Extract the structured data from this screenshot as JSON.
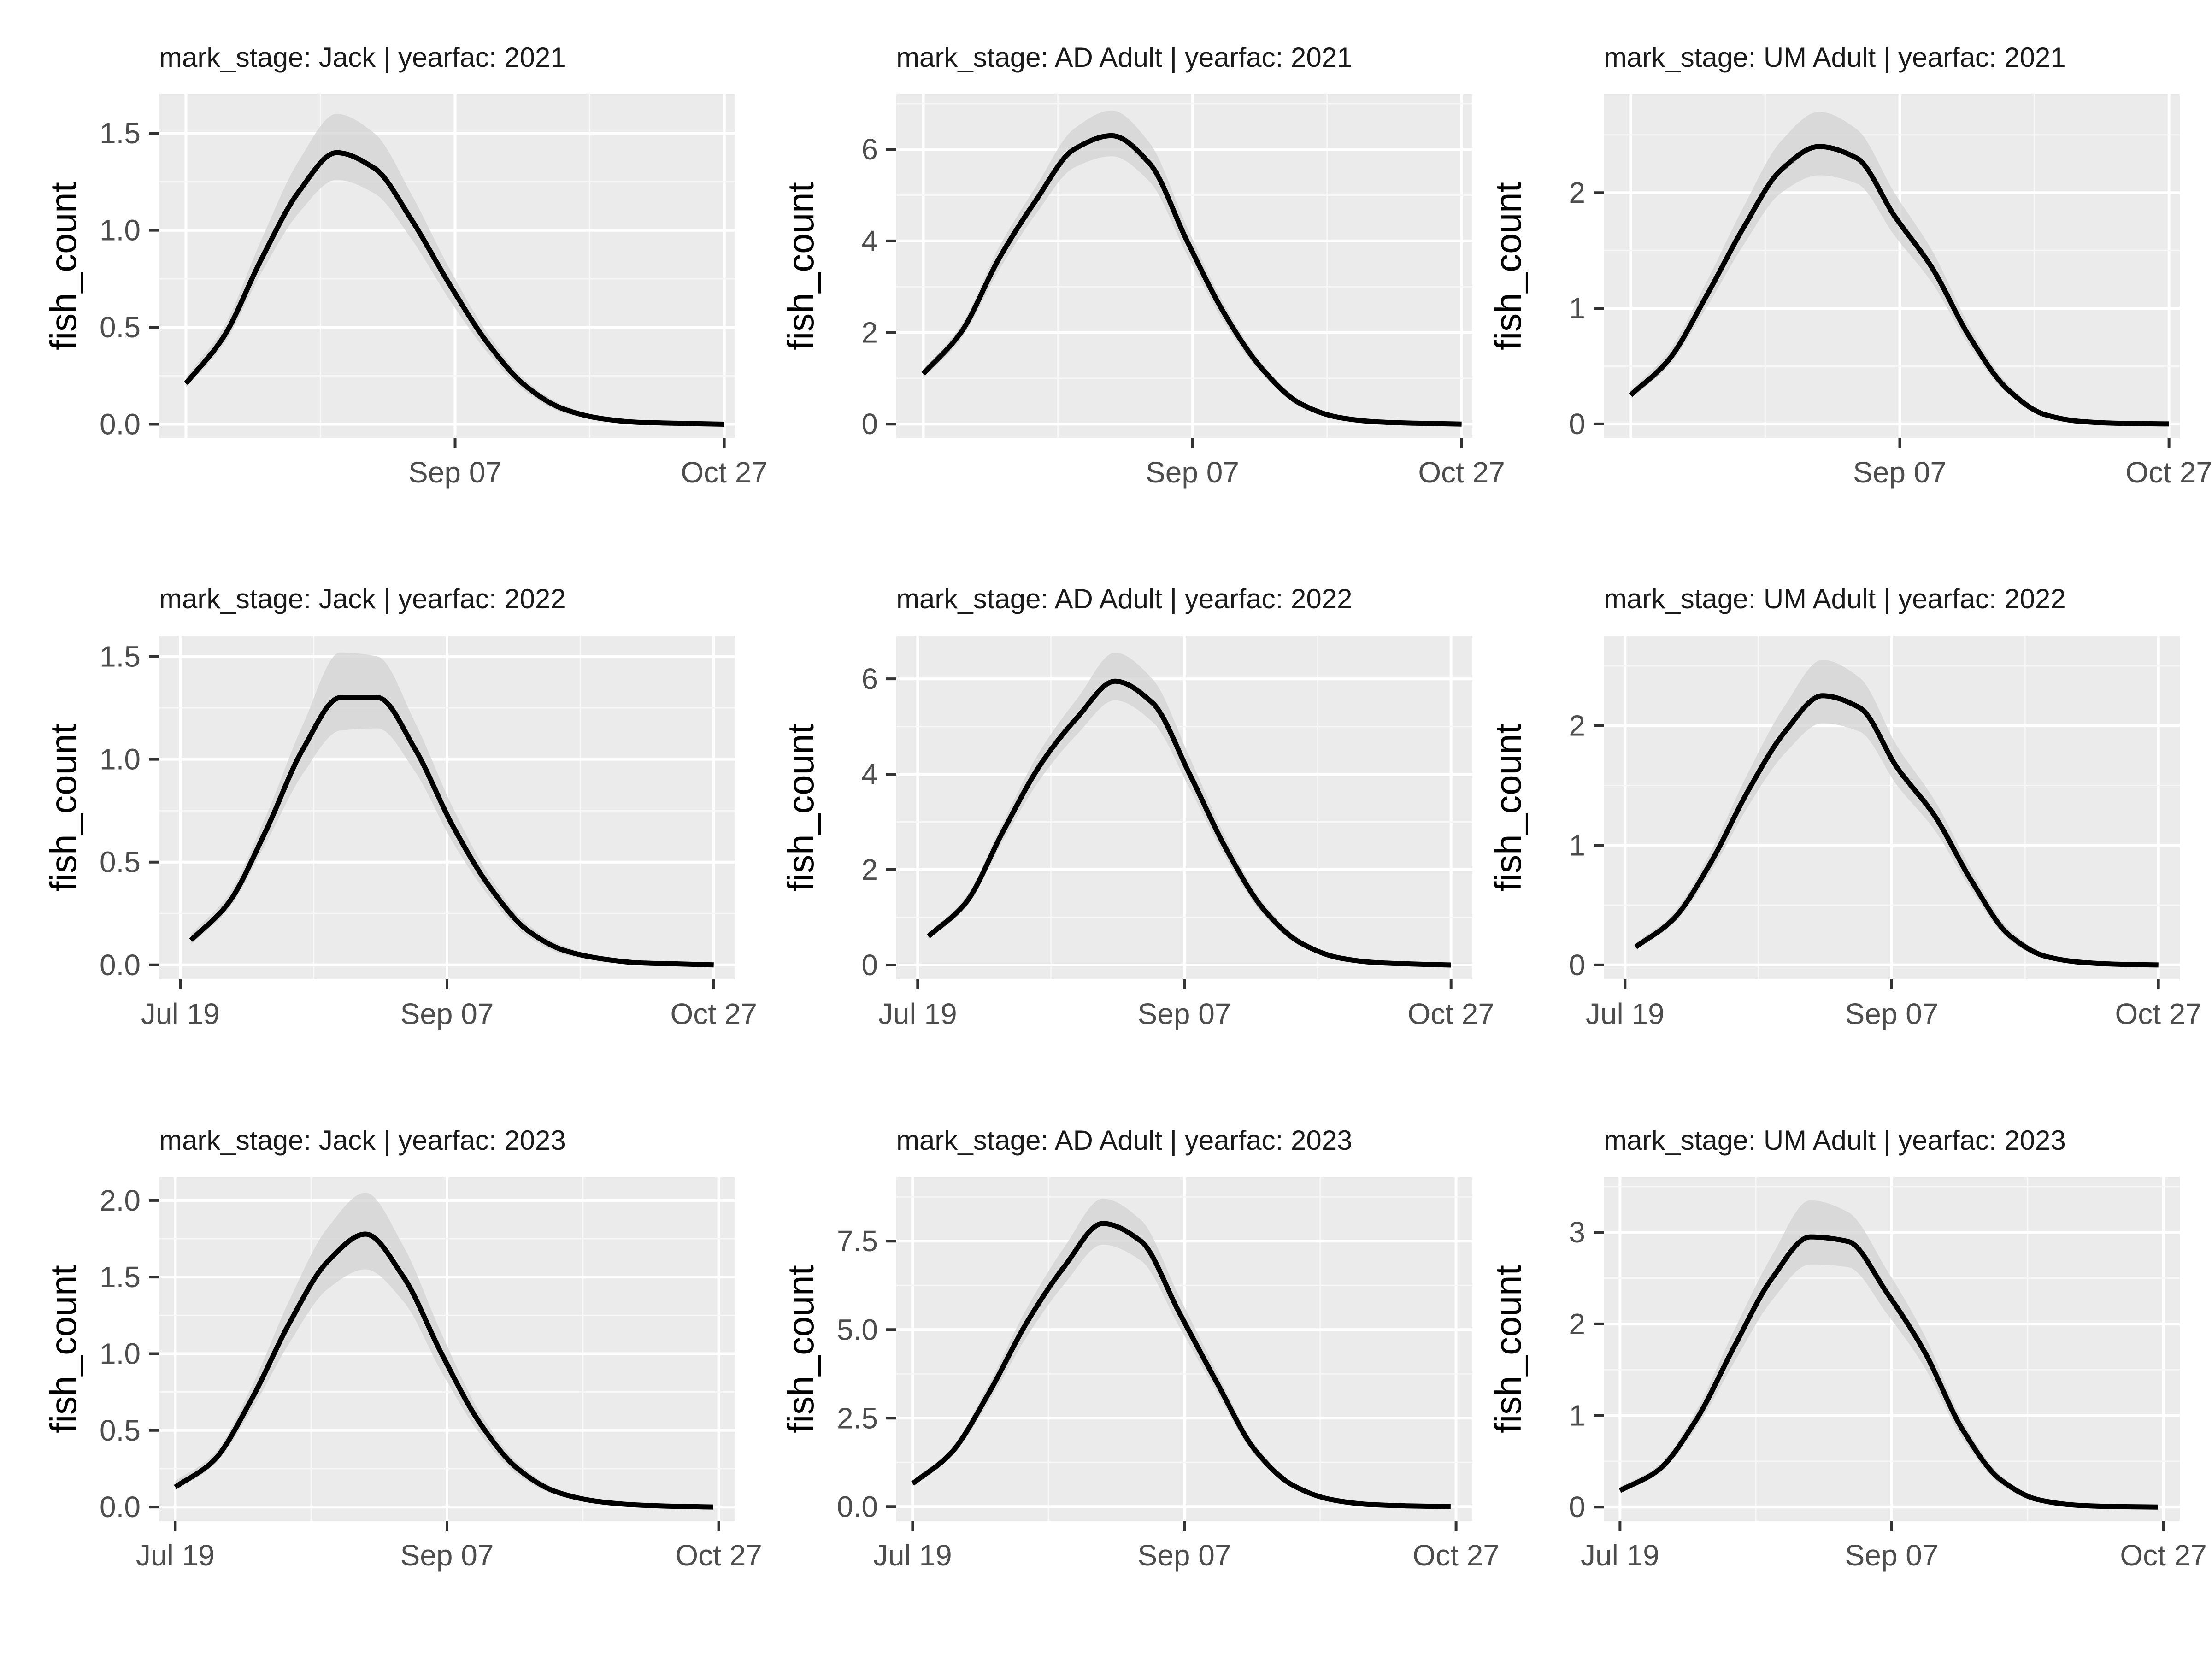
{
  "colors": {
    "panel_background": "#ebebeb",
    "grid_major": "#ffffff",
    "grid_minor": "#f7f7f7",
    "line": "#000000",
    "ribbon": "#d3d3d3",
    "tick": "#333333",
    "tick_text": "#4d4d4d"
  },
  "chart_data": [
    {
      "type": "line",
      "strip": "mark_stage: Jack | yearfac: 2021",
      "ylabel": "fish_count",
      "xlabel": "",
      "xlim": [
        "2021-07-14",
        "2021-10-29"
      ],
      "x_ticks": [
        "2021-09-07",
        "2021-10-27"
      ],
      "x_tick_labels": [
        "Sep 07",
        "Oct 27"
      ],
      "ylim": [
        -0.07,
        1.7
      ],
      "y_ticks": [
        0,
        0.5,
        1.0,
        1.5
      ],
      "y_tick_labels": [
        "0.0",
        "0.5",
        "1.0",
        "1.5"
      ],
      "series": [
        {
          "x": [
            "2021-07-19",
            "2021-07-26",
            "2021-08-02",
            "2021-08-09",
            "2021-08-16",
            "2021-08-23",
            "2021-08-30",
            "2021-09-06",
            "2021-09-13",
            "2021-09-20",
            "2021-09-27",
            "2021-10-04",
            "2021-10-11",
            "2021-10-18",
            "2021-10-27"
          ],
          "y": [
            0.21,
            0.45,
            0.85,
            1.2,
            1.4,
            1.32,
            1.05,
            0.72,
            0.42,
            0.2,
            0.08,
            0.03,
            0.01,
            0.005,
            0.0
          ],
          "lower": [
            0.19,
            0.41,
            0.78,
            1.09,
            1.26,
            1.19,
            0.95,
            0.64,
            0.37,
            0.17,
            0.06,
            0.02,
            0.005,
            0.002,
            0.0
          ],
          "upper": [
            0.24,
            0.5,
            0.95,
            1.36,
            1.6,
            1.5,
            1.18,
            0.8,
            0.47,
            0.23,
            0.1,
            0.04,
            0.015,
            0.008,
            0.002
          ]
        }
      ]
    },
    {
      "type": "line",
      "strip": "mark_stage: AD Adult | yearfac: 2021",
      "ylabel": "fish_count",
      "xlabel": "",
      "xlim": [
        "2021-07-14",
        "2021-10-29"
      ],
      "x_ticks": [
        "2021-09-07",
        "2021-10-27"
      ],
      "x_tick_labels": [
        "Sep 07",
        "Oct 27"
      ],
      "ylim": [
        -0.3,
        7.2
      ],
      "y_ticks": [
        0,
        2,
        4,
        6
      ],
      "y_tick_labels": [
        "0",
        "2",
        "4",
        "6"
      ],
      "series": [
        {
          "x": [
            "2021-07-19",
            "2021-07-26",
            "2021-08-02",
            "2021-08-09",
            "2021-08-16",
            "2021-08-23",
            "2021-08-30",
            "2021-09-06",
            "2021-09-13",
            "2021-09-20",
            "2021-09-27",
            "2021-10-04",
            "2021-10-11",
            "2021-10-18",
            "2021-10-27"
          ],
          "y": [
            1.1,
            2.0,
            3.6,
            4.9,
            6.0,
            6.3,
            5.7,
            4.0,
            2.4,
            1.2,
            0.45,
            0.15,
            0.05,
            0.02,
            0.0
          ],
          "lower": [
            1.0,
            1.85,
            3.35,
            4.6,
            5.6,
            5.85,
            5.3,
            3.7,
            2.2,
            1.08,
            0.38,
            0.12,
            0.04,
            0.01,
            0.0
          ],
          "upper": [
            1.2,
            2.15,
            3.85,
            5.2,
            6.45,
            6.85,
            6.15,
            4.3,
            2.6,
            1.32,
            0.52,
            0.18,
            0.06,
            0.03,
            0.01
          ]
        }
      ]
    },
    {
      "type": "line",
      "strip": "mark_stage: UM Adult | yearfac: 2021",
      "ylabel": "fish_count",
      "xlabel": "",
      "xlim": [
        "2021-07-14",
        "2021-10-29"
      ],
      "x_ticks": [
        "2021-09-07",
        "2021-10-27"
      ],
      "x_tick_labels": [
        "Sep 07",
        "Oct 27"
      ],
      "ylim": [
        -0.12,
        2.85
      ],
      "y_ticks": [
        0,
        1,
        2
      ],
      "y_tick_labels": [
        "0",
        "1",
        "2"
      ],
      "series": [
        {
          "x": [
            "2021-07-19",
            "2021-07-26",
            "2021-08-02",
            "2021-08-09",
            "2021-08-16",
            "2021-08-23",
            "2021-08-30",
            "2021-09-06",
            "2021-09-13",
            "2021-09-20",
            "2021-09-27",
            "2021-10-04",
            "2021-10-11",
            "2021-10-18",
            "2021-10-27"
          ],
          "y": [
            0.25,
            0.55,
            1.1,
            1.7,
            2.2,
            2.4,
            2.3,
            1.8,
            1.35,
            0.75,
            0.3,
            0.08,
            0.02,
            0.005,
            0.0
          ],
          "lower": [
            0.22,
            0.5,
            1.0,
            1.55,
            2.0,
            2.15,
            2.08,
            1.63,
            1.22,
            0.67,
            0.26,
            0.06,
            0.015,
            0.003,
            0.0
          ],
          "upper": [
            0.29,
            0.62,
            1.22,
            1.88,
            2.45,
            2.7,
            2.55,
            2.0,
            1.5,
            0.84,
            0.35,
            0.1,
            0.03,
            0.008,
            0.002
          ]
        }
      ]
    },
    {
      "type": "line",
      "strip": "mark_stage: Jack | yearfac: 2022",
      "ylabel": "fish_count",
      "xlabel": "",
      "xlim": [
        "2022-07-15",
        "2022-10-31"
      ],
      "x_ticks": [
        "2022-07-19",
        "2022-09-07",
        "2022-10-27"
      ],
      "x_tick_labels": [
        "Jul 19",
        "Sep 07",
        "Oct 27"
      ],
      "ylim": [
        -0.07,
        1.6
      ],
      "y_ticks": [
        0,
        0.5,
        1.0,
        1.5
      ],
      "y_tick_labels": [
        "0.0",
        "0.5",
        "1.0",
        "1.5"
      ],
      "series": [
        {
          "x": [
            "2022-07-21",
            "2022-07-28",
            "2022-08-04",
            "2022-08-11",
            "2022-08-18",
            "2022-08-25",
            "2022-09-01",
            "2022-09-08",
            "2022-09-15",
            "2022-09-22",
            "2022-09-29",
            "2022-10-06",
            "2022-10-13",
            "2022-10-20",
            "2022-10-27"
          ],
          "y": [
            0.12,
            0.3,
            0.65,
            1.05,
            1.3,
            1.3,
            1.05,
            0.68,
            0.38,
            0.17,
            0.07,
            0.03,
            0.01,
            0.005,
            0.0
          ],
          "lower": [
            0.1,
            0.27,
            0.59,
            0.93,
            1.14,
            1.15,
            0.94,
            0.6,
            0.33,
            0.14,
            0.05,
            0.02,
            0.005,
            0.002,
            0.0
          ],
          "upper": [
            0.15,
            0.34,
            0.72,
            1.17,
            1.52,
            1.5,
            1.18,
            0.77,
            0.43,
            0.2,
            0.09,
            0.04,
            0.015,
            0.008,
            0.002
          ]
        }
      ]
    },
    {
      "type": "line",
      "strip": "mark_stage: AD Adult | yearfac: 2022",
      "ylabel": "fish_count",
      "xlabel": "",
      "xlim": [
        "2022-07-15",
        "2022-10-31"
      ],
      "x_ticks": [
        "2022-07-19",
        "2022-09-07",
        "2022-10-27"
      ],
      "x_tick_labels": [
        "Jul 19",
        "Sep 07",
        "Oct 27"
      ],
      "ylim": [
        -0.3,
        6.9
      ],
      "y_ticks": [
        0,
        2,
        4,
        6
      ],
      "y_tick_labels": [
        "0",
        "2",
        "4",
        "6"
      ],
      "series": [
        {
          "x": [
            "2022-07-21",
            "2022-07-28",
            "2022-08-04",
            "2022-08-11",
            "2022-08-18",
            "2022-08-25",
            "2022-09-01",
            "2022-09-08",
            "2022-09-15",
            "2022-09-22",
            "2022-09-29",
            "2022-10-06",
            "2022-10-13",
            "2022-10-20",
            "2022-10-27"
          ],
          "y": [
            0.6,
            1.3,
            2.8,
            4.2,
            5.2,
            5.95,
            5.5,
            4.0,
            2.4,
            1.15,
            0.45,
            0.15,
            0.05,
            0.02,
            0.0
          ],
          "lower": [
            0.54,
            1.2,
            2.6,
            3.9,
            4.85,
            5.55,
            5.1,
            3.7,
            2.2,
            1.03,
            0.38,
            0.12,
            0.04,
            0.01,
            0.0
          ],
          "upper": [
            0.67,
            1.42,
            3.0,
            4.5,
            5.6,
            6.55,
            6.0,
            4.35,
            2.62,
            1.28,
            0.52,
            0.18,
            0.06,
            0.03,
            0.01
          ]
        }
      ]
    },
    {
      "type": "line",
      "strip": "mark_stage: UM Adult | yearfac: 2022",
      "ylabel": "fish_count",
      "xlabel": "",
      "xlim": [
        "2022-07-15",
        "2022-10-31"
      ],
      "x_ticks": [
        "2022-07-19",
        "2022-09-07",
        "2022-10-27"
      ],
      "x_tick_labels": [
        "Jul 19",
        "Sep 07",
        "Oct 27"
      ],
      "ylim": [
        -0.12,
        2.75
      ],
      "y_ticks": [
        0,
        1,
        2
      ],
      "y_tick_labels": [
        "0",
        "1",
        "2"
      ],
      "series": [
        {
          "x": [
            "2022-07-21",
            "2022-07-28",
            "2022-08-04",
            "2022-08-11",
            "2022-08-18",
            "2022-08-25",
            "2022-09-01",
            "2022-09-08",
            "2022-09-15",
            "2022-09-22",
            "2022-09-29",
            "2022-10-06",
            "2022-10-13",
            "2022-10-20",
            "2022-10-27"
          ],
          "y": [
            0.15,
            0.38,
            0.85,
            1.45,
            1.95,
            2.25,
            2.15,
            1.65,
            1.25,
            0.7,
            0.25,
            0.07,
            0.02,
            0.005,
            0.0
          ],
          "lower": [
            0.13,
            0.34,
            0.77,
            1.32,
            1.77,
            2.02,
            1.95,
            1.5,
            1.13,
            0.62,
            0.21,
            0.05,
            0.015,
            0.003,
            0.0
          ],
          "upper": [
            0.18,
            0.43,
            0.94,
            1.6,
            2.17,
            2.55,
            2.4,
            1.83,
            1.38,
            0.79,
            0.3,
            0.09,
            0.03,
            0.008,
            0.002
          ]
        }
      ]
    },
    {
      "type": "line",
      "strip": "mark_stage: Jack | yearfac: 2023",
      "ylabel": "fish_count",
      "xlabel": "",
      "xlim": [
        "2023-07-16",
        "2023-10-30"
      ],
      "x_ticks": [
        "2023-07-19",
        "2023-09-07",
        "2023-10-27"
      ],
      "x_tick_labels": [
        "Jul 19",
        "Sep 07",
        "Oct 27"
      ],
      "ylim": [
        -0.09,
        2.15
      ],
      "y_ticks": [
        0,
        0.5,
        1.0,
        1.5,
        2.0
      ],
      "y_tick_labels": [
        "0.0",
        "0.5",
        "1.0",
        "1.5",
        "2.0"
      ],
      "series": [
        {
          "x": [
            "2023-07-19",
            "2023-07-26",
            "2023-08-02",
            "2023-08-09",
            "2023-08-16",
            "2023-08-23",
            "2023-08-30",
            "2023-09-06",
            "2023-09-13",
            "2023-09-20",
            "2023-09-27",
            "2023-10-04",
            "2023-10-11",
            "2023-10-18",
            "2023-10-26"
          ],
          "y": [
            0.13,
            0.3,
            0.7,
            1.2,
            1.6,
            1.78,
            1.5,
            1.0,
            0.55,
            0.25,
            0.1,
            0.04,
            0.015,
            0.005,
            0.0
          ],
          "lower": [
            0.11,
            0.27,
            0.63,
            1.07,
            1.42,
            1.55,
            1.34,
            0.88,
            0.48,
            0.21,
            0.08,
            0.03,
            0.01,
            0.002,
            0.0
          ],
          "upper": [
            0.17,
            0.34,
            0.78,
            1.35,
            1.82,
            2.05,
            1.7,
            1.13,
            0.62,
            0.29,
            0.12,
            0.05,
            0.02,
            0.008,
            0.002
          ]
        }
      ]
    },
    {
      "type": "line",
      "strip": "mark_stage: AD Adult | yearfac: 2023",
      "ylabel": "fish_count",
      "xlabel": "",
      "xlim": [
        "2023-07-16",
        "2023-10-30"
      ],
      "x_ticks": [
        "2023-07-19",
        "2023-09-07",
        "2023-10-27"
      ],
      "x_tick_labels": [
        "Jul 19",
        "Sep 07",
        "Oct 27"
      ],
      "ylim": [
        -0.4,
        9.3
      ],
      "y_ticks": [
        0,
        2.5,
        5.0,
        7.5
      ],
      "y_tick_labels": [
        "0.0",
        "2.5",
        "5.0",
        "7.5"
      ],
      "series": [
        {
          "x": [
            "2023-07-19",
            "2023-07-26",
            "2023-08-02",
            "2023-08-09",
            "2023-08-16",
            "2023-08-23",
            "2023-08-30",
            "2023-09-06",
            "2023-09-13",
            "2023-09-20",
            "2023-09-27",
            "2023-10-04",
            "2023-10-11",
            "2023-10-18",
            "2023-10-26"
          ],
          "y": [
            0.65,
            1.5,
            3.2,
            5.2,
            6.8,
            8.0,
            7.5,
            5.5,
            3.5,
            1.6,
            0.6,
            0.2,
            0.06,
            0.02,
            0.0
          ],
          "lower": [
            0.58,
            1.38,
            2.95,
            4.8,
            6.3,
            7.4,
            6.95,
            5.1,
            3.22,
            1.45,
            0.52,
            0.16,
            0.05,
            0.01,
            0.0
          ],
          "upper": [
            0.73,
            1.63,
            3.45,
            5.6,
            7.35,
            8.7,
            8.1,
            5.95,
            3.8,
            1.76,
            0.68,
            0.24,
            0.08,
            0.03,
            0.01
          ]
        }
      ]
    },
    {
      "type": "line",
      "strip": "mark_stage: UM Adult | yearfac: 2023",
      "ylabel": "fish_count",
      "xlabel": "",
      "xlim": [
        "2023-07-16",
        "2023-10-30"
      ],
      "x_ticks": [
        "2023-07-19",
        "2023-09-07",
        "2023-10-27"
      ],
      "x_tick_labels": [
        "Jul 19",
        "Sep 07",
        "Oct 27"
      ],
      "ylim": [
        -0.15,
        3.6
      ],
      "y_ticks": [
        0,
        1,
        2,
        3
      ],
      "y_tick_labels": [
        "0",
        "1",
        "2",
        "3"
      ],
      "series": [
        {
          "x": [
            "2023-07-19",
            "2023-07-26",
            "2023-08-02",
            "2023-08-09",
            "2023-08-16",
            "2023-08-23",
            "2023-08-30",
            "2023-09-06",
            "2023-09-13",
            "2023-09-20",
            "2023-09-27",
            "2023-10-04",
            "2023-10-11",
            "2023-10-18",
            "2023-10-26"
          ],
          "y": [
            0.18,
            0.4,
            0.95,
            1.75,
            2.5,
            2.95,
            2.9,
            2.35,
            1.7,
            0.85,
            0.3,
            0.08,
            0.02,
            0.005,
            0.0
          ],
          "lower": [
            0.15,
            0.36,
            0.86,
            1.58,
            2.26,
            2.65,
            2.62,
            2.12,
            1.53,
            0.75,
            0.25,
            0.06,
            0.015,
            0.003,
            0.0
          ],
          "upper": [
            0.22,
            0.45,
            1.05,
            1.93,
            2.75,
            3.35,
            3.22,
            2.6,
            1.88,
            0.95,
            0.35,
            0.1,
            0.03,
            0.008,
            0.002
          ]
        }
      ]
    }
  ]
}
